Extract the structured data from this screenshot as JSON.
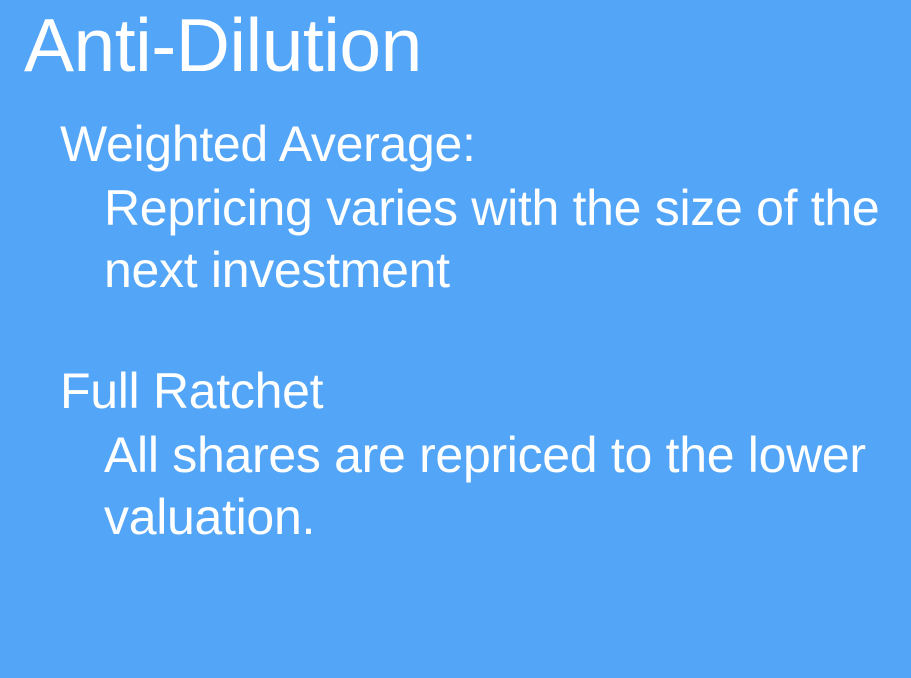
{
  "colors": {
    "background": "#52a5f7",
    "text": "#ffffff"
  },
  "title": "Anti-Dilution",
  "sections": [
    {
      "heading": "Weighted Average:",
      "body": "Repricing varies with the size of the next investment"
    },
    {
      "heading": "Full Ratchet",
      "body": "All shares are repriced to the lower valuation."
    }
  ]
}
